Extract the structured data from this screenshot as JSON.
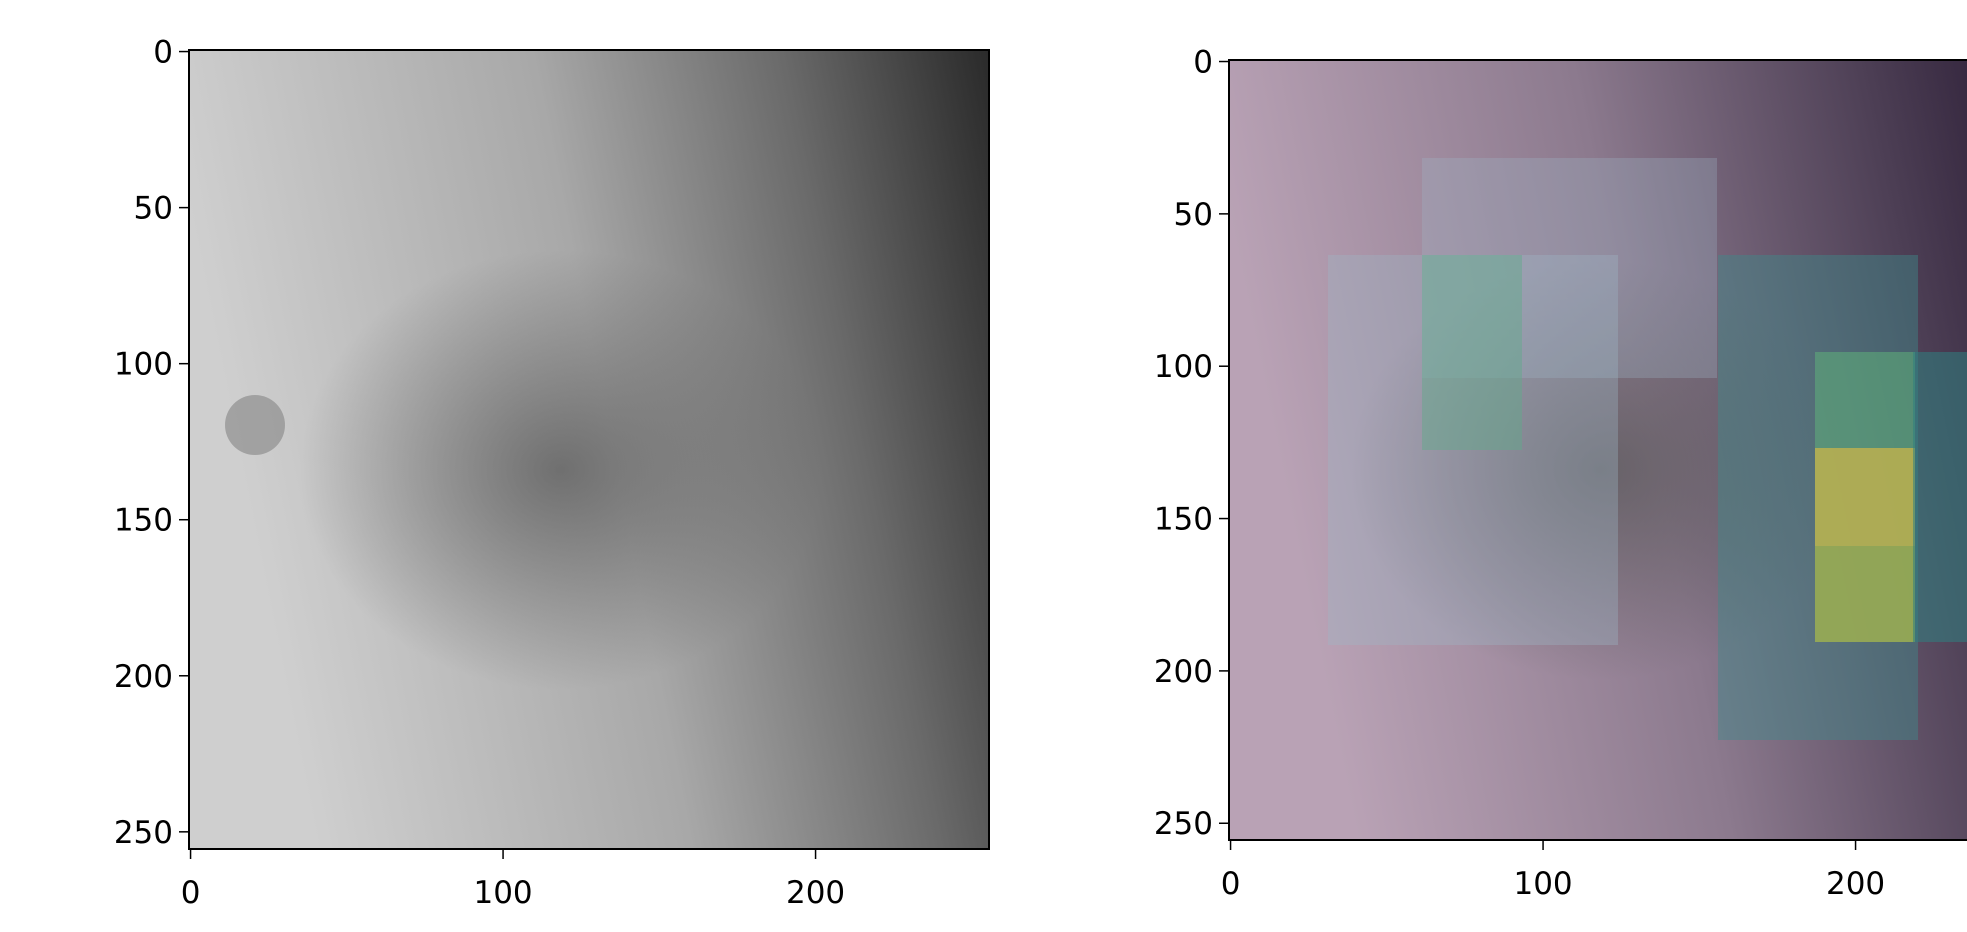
{
  "chart_data": [
    {
      "type": "image",
      "xlim": [
        -0.5,
        255.5
      ],
      "ylim": [
        255.5,
        -0.5
      ],
      "xticks": [
        0,
        100,
        200
      ],
      "yticks": [
        0,
        50,
        100,
        150,
        200,
        250
      ]
    },
    {
      "type": "image",
      "xlim": [
        -0.5,
        255.5
      ],
      "ylim": [
        255.5,
        -0.5
      ],
      "xticks": [
        0,
        100,
        200
      ],
      "yticks": [
        0,
        50,
        100,
        150,
        200,
        250
      ]
    }
  ]
}
